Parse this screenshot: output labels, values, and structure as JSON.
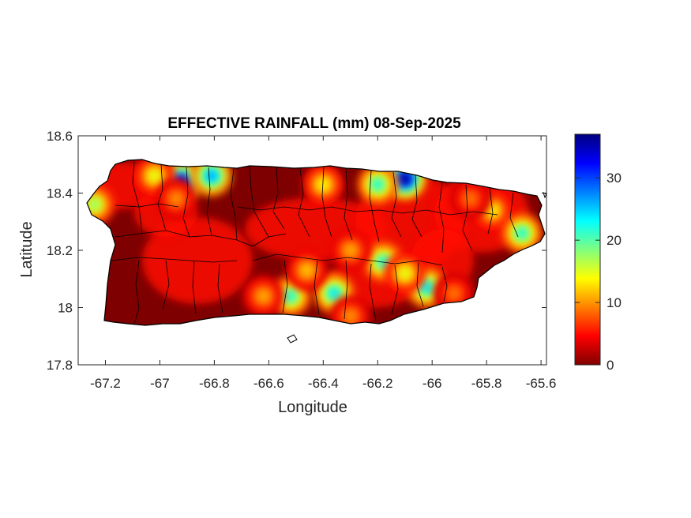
{
  "chart_data": {
    "type": "heatmap",
    "title": "EFFECTIVE RAINFALL (mm) 08-Sep-2025",
    "xlabel": "Longitude",
    "ylabel": "Latitude",
    "xlim": [
      -67.3,
      -65.58
    ],
    "ylim": [
      17.8,
      18.6
    ],
    "x_ticks": [
      -67.2,
      -67,
      -66.8,
      -66.6,
      -66.4,
      -66.2,
      -66,
      -65.8,
      -65.6
    ],
    "x_tick_labels": [
      "-67.2",
      "-67",
      "-66.8",
      "-66.6",
      "-66.4",
      "-66.2",
      "-66",
      "-65.8",
      "-65.6"
    ],
    "y_ticks": [
      17.8,
      18,
      18.2,
      18.4,
      18.6
    ],
    "y_tick_labels": [
      "17.8",
      "18",
      "18.2",
      "18.4",
      "18.6"
    ],
    "colorbar": {
      "colormap": "jet-reversed",
      "range": [
        0,
        37
      ],
      "ticks": [
        0,
        10,
        20,
        30
      ],
      "tick_labels": [
        "0",
        "10",
        "20",
        "30"
      ]
    },
    "grid": false,
    "rain_hotspots": [
      {
        "lon": -66.92,
        "lat": 18.44,
        "value": 34
      },
      {
        "lon": -66.81,
        "lat": 18.46,
        "value": 27
      },
      {
        "lon": -66.1,
        "lat": 18.45,
        "value": 37
      },
      {
        "lon": -66.2,
        "lat": 18.43,
        "value": 22
      },
      {
        "lon": -66.4,
        "lat": 18.43,
        "value": 14
      },
      {
        "lon": -67.24,
        "lat": 18.36,
        "value": 18
      },
      {
        "lon": -66.36,
        "lat": 18.05,
        "value": 24
      },
      {
        "lon": -66.52,
        "lat": 18.04,
        "value": 22
      },
      {
        "lon": -66.18,
        "lat": 18.16,
        "value": 22
      },
      {
        "lon": -66.02,
        "lat": 18.07,
        "value": 24
      },
      {
        "lon": -66.1,
        "lat": 18.12,
        "value": 15
      },
      {
        "lon": -65.78,
        "lat": 18.34,
        "value": 14
      },
      {
        "lon": -65.67,
        "lat": 18.26,
        "value": 22
      },
      {
        "lon": -66.3,
        "lat": 18.2,
        "value": 11
      },
      {
        "lon": -66.46,
        "lat": 18.13,
        "value": 12
      },
      {
        "lon": -66.62,
        "lat": 18.04,
        "value": 11
      },
      {
        "lon": -66.3,
        "lat": 17.97,
        "value": 10
      },
      {
        "lon": -67.02,
        "lat": 18.46,
        "value": 15
      },
      {
        "lon": -66.94,
        "lat": 18.38,
        "value": 10
      },
      {
        "lon": -65.86,
        "lat": 18.38,
        "value": 9
      },
      {
        "lon": -65.92,
        "lat": 18.05,
        "value": 9
      }
    ]
  }
}
